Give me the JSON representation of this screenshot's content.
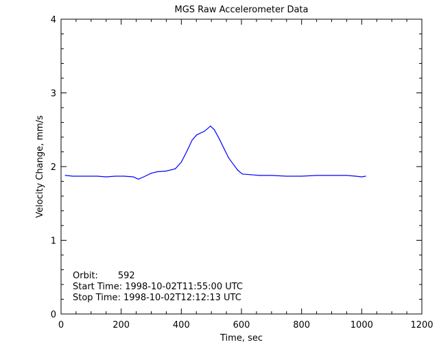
{
  "chart_data": {
    "type": "line",
    "title": "MGS Raw Accelerometer Data",
    "xlabel": "Time, sec",
    "ylabel": "Velocity Change, mm/s",
    "xlim": [
      0,
      1200
    ],
    "ylim": [
      0,
      4
    ],
    "xticks": [
      "0",
      "200",
      "400",
      "600",
      "800",
      "1000",
      "1200"
    ],
    "yticks": [
      "0",
      "1",
      "2",
      "3",
      "4"
    ],
    "grid": false,
    "line_color": "#0000ff",
    "annotations": [
      "Orbit:       592",
      "Start Time: 1998-10-02T11:55:00 UTC",
      "Stop Time: 1998-10-02T12:12:13 UTC"
    ],
    "series": [
      {
        "x": [
          14,
          40,
          80,
          120,
          150,
          180,
          210,
          240,
          257,
          275,
          300,
          320,
          350,
          380,
          400,
          420,
          436,
          451,
          477,
          497,
          510,
          527,
          545,
          557,
          575,
          588,
          603,
          630,
          660,
          700,
          750,
          800,
          850,
          900,
          950,
          980,
          1000,
          1013
        ],
        "y": [
          1.88,
          1.87,
          1.87,
          1.87,
          1.86,
          1.87,
          1.87,
          1.86,
          1.83,
          1.86,
          1.91,
          1.93,
          1.94,
          1.97,
          2.06,
          2.22,
          2.36,
          2.43,
          2.48,
          2.55,
          2.5,
          2.37,
          2.22,
          2.12,
          2.02,
          1.95,
          1.9,
          1.89,
          1.88,
          1.88,
          1.87,
          1.87,
          1.88,
          1.88,
          1.88,
          1.87,
          1.86,
          1.87
        ]
      }
    ]
  }
}
